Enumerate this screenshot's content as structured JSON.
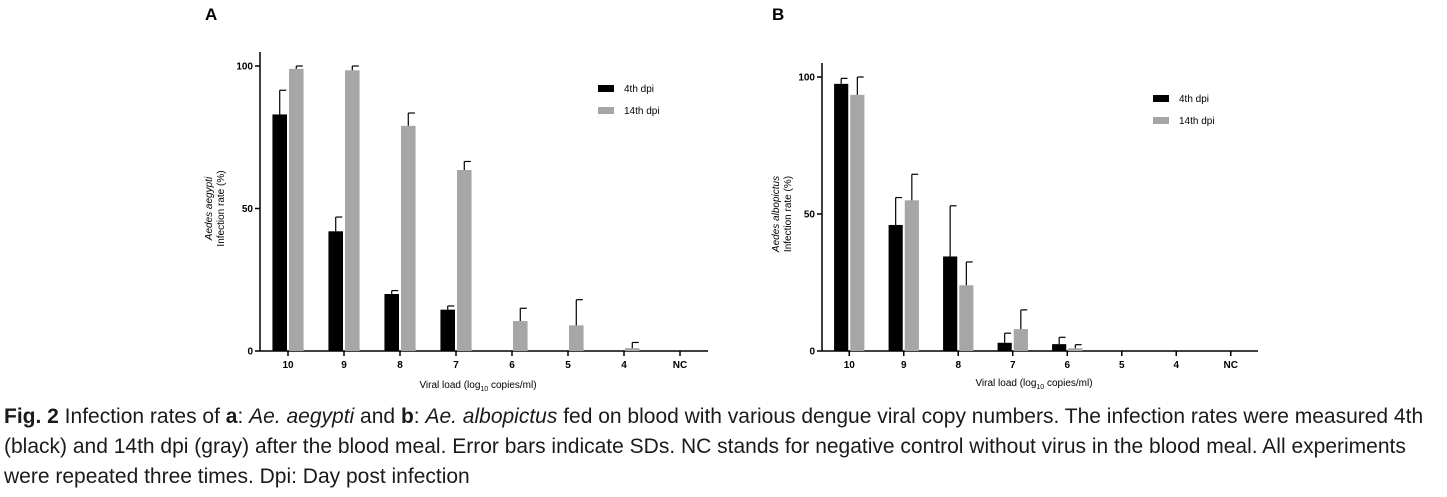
{
  "colors": {
    "series_4th": "#000000",
    "series_14th": "#a6a6a6"
  },
  "chart_data": [
    {
      "type": "bar",
      "panel_label": "A",
      "title": "",
      "xlabel_main": "Viral load (log",
      "xlabel_sub": "10",
      "xlabel_end": " copies/ml)",
      "ylabel_species": "Aedes aegypti",
      "ylabel": "Infection rate (%)",
      "ylim": [
        0,
        100
      ],
      "yticks": [
        "0",
        "50",
        "100"
      ],
      "categories": [
        "10",
        "9",
        "8",
        "7",
        "6",
        "5",
        "4",
        "NC"
      ],
      "legend_position": "top-right",
      "series": [
        {
          "name": "4th dpi",
          "color": "#000000",
          "values": [
            83,
            42,
            20,
            14.5,
            0,
            0,
            0,
            0
          ],
          "errors": [
            8.5,
            5,
            1.2,
            1.3,
            0,
            0,
            0,
            0
          ]
        },
        {
          "name": "14th dpi",
          "color": "#a6a6a6",
          "values": [
            99,
            98.5,
            79,
            63.5,
            10.5,
            9,
            1,
            0
          ],
          "errors": [
            1,
            1.5,
            4.5,
            3,
            4.5,
            9,
            2,
            0
          ]
        }
      ]
    },
    {
      "type": "bar",
      "panel_label": "B",
      "title": "",
      "xlabel_main": "Viral load (log",
      "xlabel_sub": "10",
      "xlabel_end": " copies/ml)",
      "ylabel_species": "Aedes albopictus",
      "ylabel": "Infection rate (%)",
      "ylim": [
        0,
        100
      ],
      "yticks": [
        "0",
        "50",
        "100"
      ],
      "categories": [
        "10",
        "9",
        "8",
        "7",
        "6",
        "5",
        "4",
        "NC"
      ],
      "legend_position": "top-right",
      "series": [
        {
          "name": "4th dpi",
          "color": "#000000",
          "values": [
            97.5,
            46,
            34.5,
            3,
            2.5,
            0,
            0,
            0
          ],
          "errors": [
            2,
            10,
            18.5,
            3.5,
            2.5,
            0,
            0,
            0
          ]
        },
        {
          "name": "14th dpi",
          "color": "#a6a6a6",
          "values": [
            93.5,
            55,
            24,
            8,
            1,
            0,
            0,
            0
          ],
          "errors": [
            6.5,
            9.5,
            8.5,
            7,
            1.3,
            0,
            0,
            0
          ]
        }
      ]
    }
  ],
  "caption": {
    "fig_label": "Fig. 2",
    "t1": " Infection rates of ",
    "a_label": "a",
    "t2": ": ",
    "species_a": "Ae. aegypti",
    "t3": " and ",
    "b_label": "b",
    "t4": ": ",
    "species_b": "Ae. albopictus",
    "t5": " fed on blood with various dengue viral copy numbers. The infection rates were measured 4th (black) and 14th dpi (gray) after the blood meal. Error bars indicate SDs. NC stands for negative control without virus in the blood meal. All experiments were repeated three times. Dpi: Day post infection"
  }
}
